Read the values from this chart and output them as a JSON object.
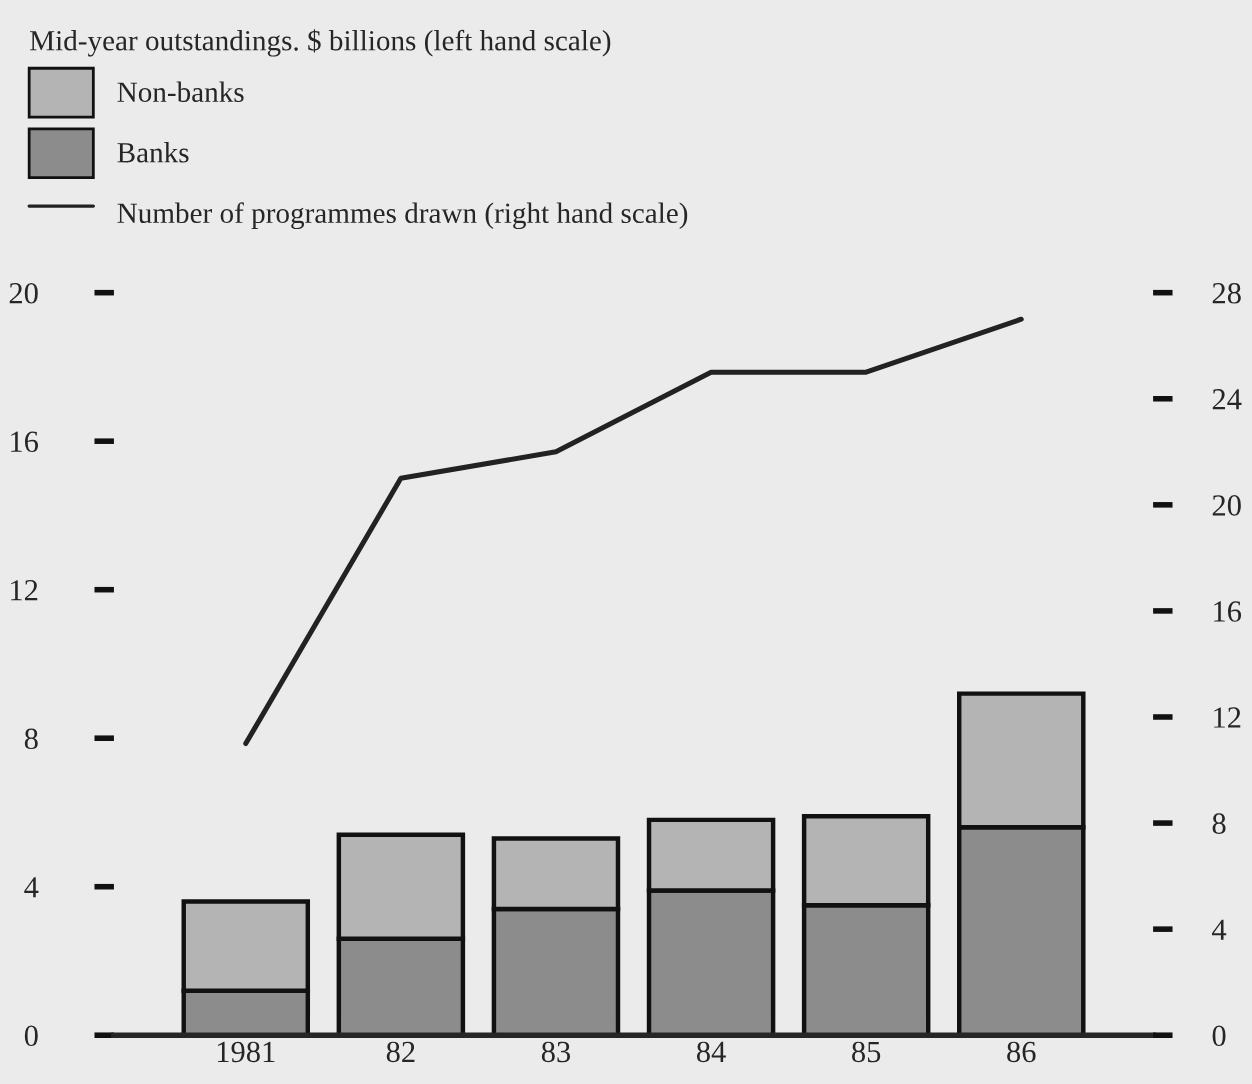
{
  "chart_data": {
    "type": "bar",
    "stacked": true,
    "legend_title": "Mid-year outstandings. $ billions (left hand scale)",
    "legend": "top left",
    "categories": [
      "1981",
      "82",
      "83",
      "84",
      "85",
      "86"
    ],
    "series": [
      {
        "name": "Banks",
        "color": "#8c8c8c",
        "values": [
          1.2,
          2.6,
          3.4,
          3.9,
          3.5,
          5.6
        ]
      },
      {
        "name": "Non-banks",
        "color": "#b4b4b4",
        "values": [
          2.4,
          2.8,
          1.9,
          1.9,
          2.4,
          3.6
        ]
      },
      {
        "name": "Number of programmes drawn (right hand scale)",
        "type": "line",
        "axis": "y2",
        "color": "#222222",
        "values": [
          11,
          21,
          22,
          25,
          25,
          27
        ]
      }
    ],
    "ylim": [
      0,
      20
    ],
    "yticks": [
      0,
      4,
      8,
      12,
      16,
      20
    ],
    "y2lim": [
      0,
      28
    ],
    "y2ticks": [
      0,
      4,
      8,
      12,
      16,
      20,
      24,
      28
    ]
  }
}
